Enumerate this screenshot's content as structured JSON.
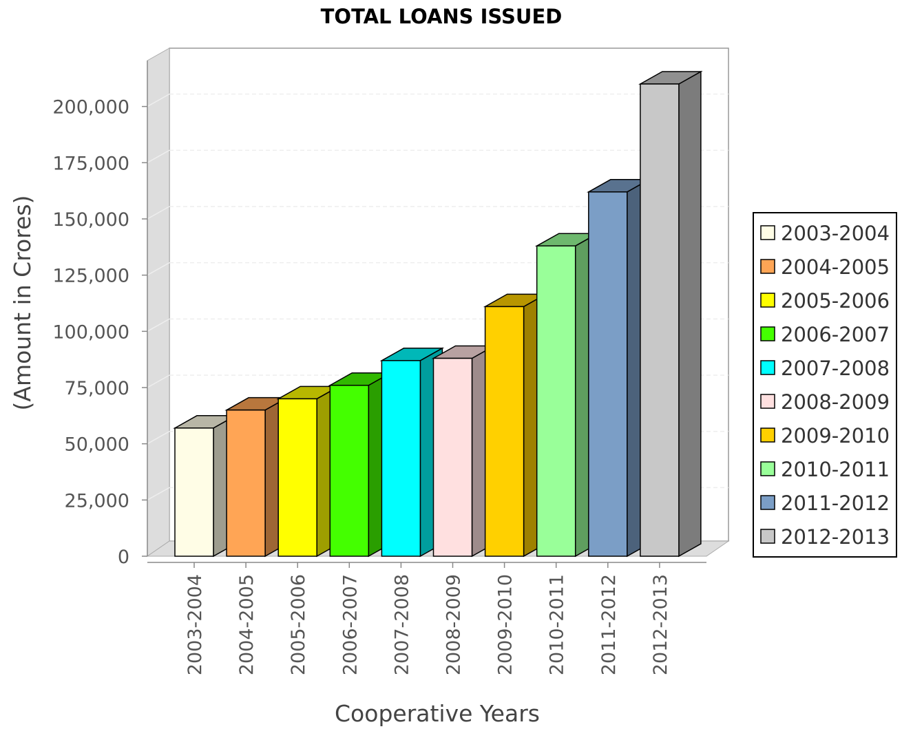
{
  "chart_data": {
    "type": "bar",
    "title": "TOTAL LOANS ISSUED",
    "xlabel": "Cooperative Years",
    "ylabel": "(Amount in Crores)",
    "ylim": [
      0,
      210000
    ],
    "yticks": [
      0,
      25000,
      50000,
      75000,
      100000,
      125000,
      150000,
      175000,
      200000
    ],
    "ytick_labels": [
      "0",
      "25,000",
      "50,000",
      "75,000",
      "100,000",
      "125,000",
      "150,000",
      "175,000",
      "200,000"
    ],
    "categories": [
      "2003-2004",
      "2004-2005",
      "2005-2006",
      "2006-2007",
      "2007-2008",
      "2008-2009",
      "2009-2010",
      "2010-2011",
      "2011-2012",
      "2012-2013"
    ],
    "values": [
      57000,
      65000,
      70000,
      76000,
      87000,
      88000,
      111000,
      138000,
      162000,
      210000
    ],
    "colors": [
      "#FFFDE6",
      "#FFA555",
      "#FFFF00",
      "#44FF00",
      "#00FFFF",
      "#FFE0E0",
      "#FFD000",
      "#99FF99",
      "#7B9EC6",
      "#C8C8C8"
    ],
    "legend": {
      "position": "right",
      "entries": [
        "2003-2004",
        "2004-2005",
        "2005-2006",
        "2006-2007",
        "2007-2008",
        "2008-2009",
        "2009-2010",
        "2010-2011",
        "2011-2012",
        "2012-2013"
      ]
    },
    "grid": true,
    "style": "3d"
  }
}
